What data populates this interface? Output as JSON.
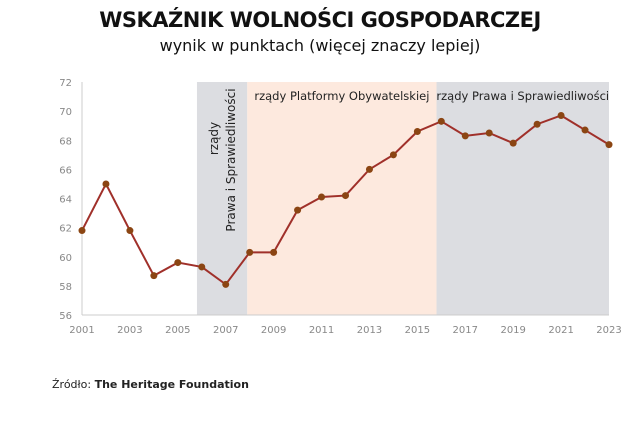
{
  "chart_data": {
    "type": "line",
    "title": "WSKAŹNIK WOLNOŚCI GOSPODARCZEJ",
    "subtitle": "wynik w punktach (więcej znaczy lepiej)",
    "x": [
      2001,
      2002,
      2003,
      2004,
      2005,
      2006,
      2007,
      2008,
      2009,
      2010,
      2011,
      2012,
      2013,
      2014,
      2015,
      2016,
      2017,
      2018,
      2019,
      2020,
      2021,
      2022,
      2023
    ],
    "series": [
      {
        "values": [
          61.8,
          65.0,
          61.8,
          58.7,
          59.6,
          59.3,
          58.1,
          60.3,
          60.3,
          63.2,
          64.1,
          64.2,
          66.0,
          67.0,
          68.6,
          69.3,
          68.3,
          68.5,
          67.8,
          69.1,
          69.7,
          68.7,
          67.7
        ],
        "color": "#a0302a",
        "marker_color": "#8b4513"
      }
    ],
    "ylim": [
      56,
      72
    ],
    "yticks": [
      56,
      58,
      60,
      62,
      64,
      66,
      68,
      70,
      72
    ],
    "xticks": [
      2001,
      2003,
      2005,
      2007,
      2009,
      2011,
      2013,
      2015,
      2017,
      2019,
      2021,
      2023
    ],
    "grid": false,
    "bands": [
      {
        "from": 2005.8,
        "to": 2007.9,
        "color": "#dcdde1",
        "label_line1": "rządy",
        "label_line2": "Prawa i Sprawiedliwości"
      },
      {
        "from": 2007.9,
        "to": 2015.8,
        "color": "#fde9de",
        "label": "rządy Platformy Obywatelskiej"
      },
      {
        "from": 2015.8,
        "to": 2023,
        "color": "#dcdde1",
        "label": "rządy Prawa i Sprawiedliwości"
      }
    ]
  },
  "source": {
    "prefix": "Źródło:",
    "name": "The Heritage Foundation"
  }
}
